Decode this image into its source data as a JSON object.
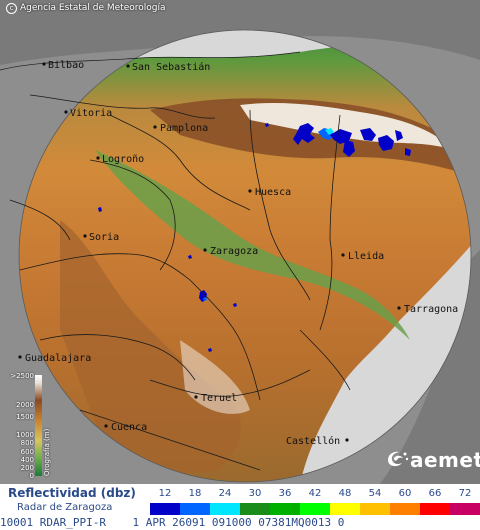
{
  "credit": "Agencia Estatal de Meteorología",
  "brand": "aemet",
  "cities": [
    {
      "name": "Bilbao",
      "key": "bilbao"
    },
    {
      "name": "San Sebastián",
      "key": "san-sebastian"
    },
    {
      "name": "Vitoria",
      "key": "vitoria"
    },
    {
      "name": "Pamplona",
      "key": "pamplona"
    },
    {
      "name": "Logroño",
      "key": "logrono"
    },
    {
      "name": "Huesca",
      "key": "huesca"
    },
    {
      "name": "Soria",
      "key": "soria"
    },
    {
      "name": "Zaragoza",
      "key": "zaragoza"
    },
    {
      "name": "Lleida",
      "key": "lleida"
    },
    {
      "name": "Tarragona",
      "key": "tarragona"
    },
    {
      "name": "Guadalajara",
      "key": "guadalajara"
    },
    {
      "name": "Teruel",
      "key": "teruel"
    },
    {
      "name": "Cuenca",
      "key": "cuenca"
    },
    {
      "name": "Castellón",
      "key": "castellon"
    }
  ],
  "altitude_legend": {
    "title": "Orografía (m)",
    "ticks": [
      ">2500",
      "2000",
      "1500",
      "1000",
      "800",
      "600",
      "400",
      "200",
      "0"
    ]
  },
  "reflectivity": {
    "title": "Reflectividad (dbz)",
    "radar": "Radar de Zaragoza",
    "values": [
      "12",
      "18",
      "24",
      "30",
      "36",
      "42",
      "48",
      "54",
      "60",
      "66",
      "72"
    ],
    "colors": [
      "#0000c8",
      "#0066ff",
      "#00e6ff",
      "#1a8c1a",
      "#00b000",
      "#00ff00",
      "#ffff00",
      "#ffc000",
      "#ff8000",
      "#ff0000",
      "#c80064"
    ]
  },
  "status_line": "10001 RDAR_PPI-R    1 APR 26091 091000 07381MQ0013 0"
}
